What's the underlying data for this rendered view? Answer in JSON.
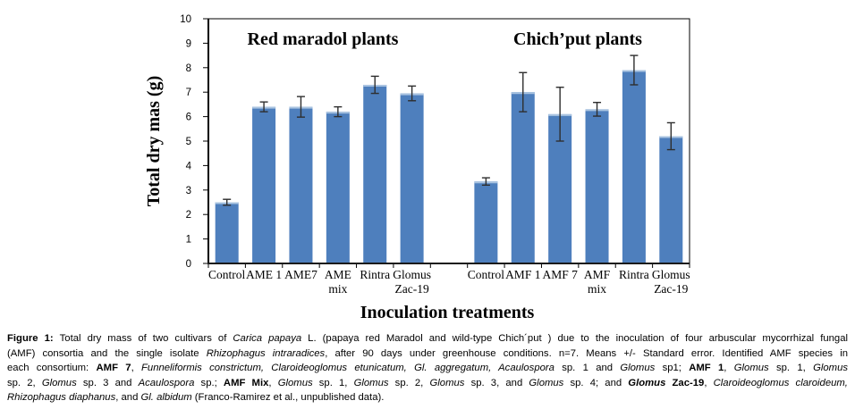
{
  "chart_data": {
    "type": "bar",
    "xlabel": "Inoculation treatments",
    "ylabel": "Total dry mas (g)",
    "ylim": [
      0,
      10
    ],
    "ytick_step": 1,
    "grid": false,
    "legend": "none",
    "bar_color": "#4e7fbd",
    "bar_highlight_color": "#aac4e1",
    "error_bar_color": "#2e2e2e",
    "axis_color": "#000000",
    "groups": [
      {
        "name": "Red maradol plants",
        "categories": [
          "Control",
          "AME 1",
          "AME7",
          "AME\nmix",
          "Rintra",
          "Glomus\nZac-19"
        ],
        "values": [
          2.5,
          6.4,
          6.4,
          6.2,
          7.3,
          6.95
        ],
        "errors": [
          0.12,
          0.2,
          0.42,
          0.2,
          0.35,
          0.3
        ]
      },
      {
        "name": "Chich’put plants",
        "categories": [
          "Control",
          "AMF 1",
          "AMF 7",
          "AMF\nmix",
          "Rintra",
          "Glomus\nZac-19"
        ],
        "values": [
          3.35,
          7.0,
          6.1,
          6.3,
          7.9,
          5.2
        ],
        "errors": [
          0.15,
          0.8,
          1.1,
          0.28,
          0.6,
          0.55
        ]
      }
    ]
  },
  "caption": {
    "lines": [
      {
        "segments": [
          {
            "t": "Figure 1: ",
            "b": true
          },
          {
            "t": "Total dry mass of two cultivars of "
          },
          {
            "t": "Carica papaya",
            "i": true
          },
          {
            "t": " L. (papaya red Maradol and wild-type Chich´put ) due to the inoculation of four arbuscular mycorrhizal fungal"
          }
        ]
      },
      {
        "segments": [
          {
            "t": "(AMF) consortia and the single isolate "
          },
          {
            "t": "Rhizophagus intraradices",
            "i": true
          },
          {
            "t": ", after 90 days under greenhouse conditions. n=7. Means +/- Standard error. Identified AMF species in"
          }
        ]
      },
      {
        "segments": [
          {
            "t": "each consortium: "
          },
          {
            "t": "AMF 7",
            "b": true
          },
          {
            "t": ", "
          },
          {
            "t": "Funneliformis constrictum, Claroideoglomus etunicatum, Gl. aggregatum, Acaulospora",
            "i": true
          },
          {
            "t": " sp. 1 and "
          },
          {
            "t": "Glomus",
            "i": true
          },
          {
            "t": " sp1; "
          },
          {
            "t": "AMF 1",
            "b": true
          },
          {
            "t": ", "
          },
          {
            "t": "Glomus",
            "i": true
          },
          {
            "t": " sp. 1, "
          },
          {
            "t": "Glomus",
            "i": true
          }
        ]
      },
      {
        "segments": [
          {
            "t": "sp. 2, "
          },
          {
            "t": "Glomus",
            "i": true
          },
          {
            "t": " sp. 3 and "
          },
          {
            "t": "Acaulospora",
            "i": true
          },
          {
            "t": " sp.; "
          },
          {
            "t": "AMF Mix",
            "b": true
          },
          {
            "t": ", "
          },
          {
            "t": "Glomus",
            "i": true
          },
          {
            "t": " sp. 1, "
          },
          {
            "t": "Glomus",
            "i": true
          },
          {
            "t": " sp. 2, "
          },
          {
            "t": "Glomus",
            "i": true
          },
          {
            "t": " sp. 3, and "
          },
          {
            "t": "Glomus",
            "i": true
          },
          {
            "t": " sp. 4; and "
          },
          {
            "t": "Glomus",
            "b": true,
            "i": true
          },
          {
            "t": " Zac-19",
            "b": true
          },
          {
            "t": ", "
          },
          {
            "t": "Claroideoglomus claroideum,",
            "i": true
          }
        ]
      },
      {
        "segments": [
          {
            "t": "Rhizophagus diaphanus",
            "i": true
          },
          {
            "t": ", and "
          },
          {
            "t": "Gl. albidum",
            "i": true
          },
          {
            "t": " (Franco-Ramirez et al., unpublished data)."
          }
        ]
      }
    ]
  }
}
